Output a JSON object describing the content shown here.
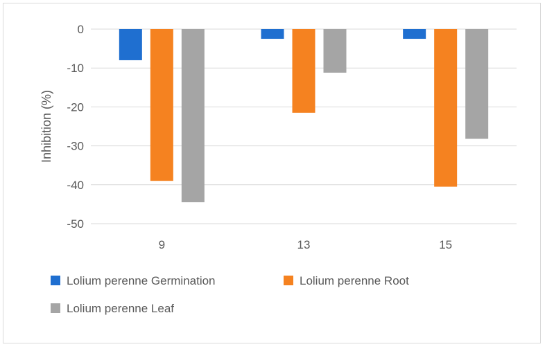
{
  "chart_data": {
    "type": "bar",
    "title": "",
    "xlabel": "",
    "ylabel": "Inhibition (%)",
    "categories": [
      "9",
      "13",
      "15"
    ],
    "ylim": [
      -50,
      0
    ],
    "yticks": [
      0,
      -10,
      -20,
      -30,
      -40,
      -50
    ],
    "grid": true,
    "legend_position": "bottom",
    "series": [
      {
        "name": "Lolium perenne Germination",
        "color": "#1f6fd0",
        "values": [
          -8,
          -2.5,
          -2.5
        ]
      },
      {
        "name": "Lolium perenne Root",
        "color": "#f58220",
        "values": [
          -39,
          -21.5,
          -40.5
        ]
      },
      {
        "name": "Lolium perenne Leaf",
        "color": "#a5a5a5",
        "values": [
          -44.5,
          -11.2,
          -28.2
        ]
      }
    ]
  }
}
